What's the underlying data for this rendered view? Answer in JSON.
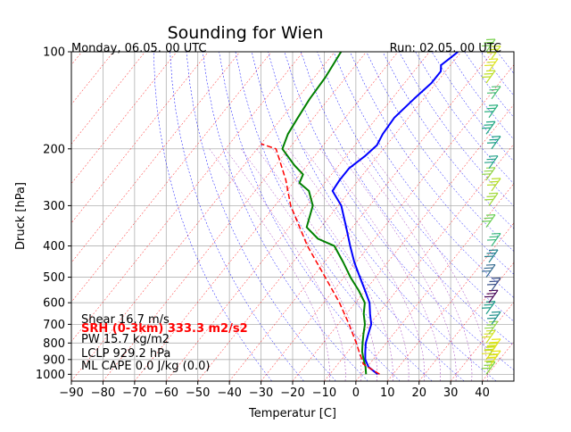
{
  "chart_data": {
    "type": "line",
    "title": "Sounding for Wien",
    "subtitle_left": "Monday, 06.05. 00 UTC",
    "subtitle_right": "Run: 02.05. 00 UTC",
    "xlabel": "Temperatur [C]",
    "ylabel": "Druck [hPa]",
    "xlim": [
      -90,
      50
    ],
    "ylim": [
      1050,
      100
    ],
    "y_scale": "log",
    "grid": true,
    "x_ticks": [
      -90,
      -80,
      -70,
      -60,
      -50,
      -40,
      -30,
      -20,
      -10,
      0,
      10,
      20,
      30,
      40
    ],
    "y_ticks": [
      100,
      200,
      300,
      400,
      500,
      600,
      700,
      800,
      900,
      1000
    ],
    "series": [
      {
        "color": "#0000ff",
        "values": [
          {
            "p": 1000,
            "t": 5.2
          },
          {
            "p": 950,
            "t": 0.5
          },
          {
            "p": 900,
            "t": -2.5
          },
          {
            "p": 850,
            "t": -4.5
          },
          {
            "p": 800,
            "t": -6.5
          },
          {
            "p": 750,
            "t": -8.0
          },
          {
            "p": 700,
            "t": -9.5
          },
          {
            "p": 650,
            "t": -12.5
          },
          {
            "p": 600,
            "t": -15.5
          },
          {
            "p": 550,
            "t": -20.0
          },
          {
            "p": 500,
            "t": -25.0
          },
          {
            "p": 450,
            "t": -30.5
          },
          {
            "p": 400,
            "t": -36.0
          },
          {
            "p": 350,
            "t": -42.0
          },
          {
            "p": 300,
            "t": -49.0
          },
          {
            "p": 270,
            "t": -55.5
          },
          {
            "p": 250,
            "t": -56.0
          },
          {
            "p": 230,
            "t": -56.0
          },
          {
            "p": 210,
            "t": -54.0
          },
          {
            "p": 195,
            "t": -53.0
          },
          {
            "p": 180,
            "t": -54.0
          },
          {
            "p": 160,
            "t": -54.5
          },
          {
            "p": 140,
            "t": -53.0
          },
          {
            "p": 125,
            "t": -51.5
          },
          {
            "p": 115,
            "t": -51.5
          },
          {
            "p": 110,
            "t": -53.0
          },
          {
            "p": 105,
            "t": -52.0
          },
          {
            "p": 100,
            "t": -51.0
          }
        ]
      },
      {
        "color": "#008000",
        "values": [
          {
            "p": 1000,
            "t": 1.5
          },
          {
            "p": 950,
            "t": -0.5
          },
          {
            "p": 900,
            "t": -3.0
          },
          {
            "p": 850,
            "t": -5.5
          },
          {
            "p": 800,
            "t": -7.5
          },
          {
            "p": 750,
            "t": -9.5
          },
          {
            "p": 700,
            "t": -11.5
          },
          {
            "p": 650,
            "t": -14.5
          },
          {
            "p": 600,
            "t": -17.0
          },
          {
            "p": 550,
            "t": -22.0
          },
          {
            "p": 500,
            "t": -28.0
          },
          {
            "p": 450,
            "t": -34.0
          },
          {
            "p": 400,
            "t": -41.0
          },
          {
            "p": 380,
            "t": -48.0
          },
          {
            "p": 350,
            "t": -54.5
          },
          {
            "p": 300,
            "t": -58.0
          },
          {
            "p": 270,
            "t": -63.0
          },
          {
            "p": 255,
            "t": -68.0
          },
          {
            "p": 240,
            "t": -69.0
          },
          {
            "p": 225,
            "t": -74.0
          },
          {
            "p": 200,
            "t": -82.0
          },
          {
            "p": 180,
            "t": -84.0
          },
          {
            "p": 160,
            "t": -85.0
          },
          {
            "p": 140,
            "t": -86.0
          },
          {
            "p": 120,
            "t": -86.5
          },
          {
            "p": 100,
            "t": -88.0
          }
        ]
      },
      {
        "color": "#ff0000",
        "values": [
          {
            "p": 1000,
            "t": 5.8
          },
          {
            "p": 929.2,
            "t": -2.0
          },
          {
            "p": 900,
            "t": -3.5
          },
          {
            "p": 850,
            "t": -6.5
          },
          {
            "p": 800,
            "t": -9.5
          },
          {
            "p": 700,
            "t": -16.5
          },
          {
            "p": 600,
            "t": -25.0
          },
          {
            "p": 500,
            "t": -36.0
          },
          {
            "p": 400,
            "t": -49.5
          },
          {
            "p": 300,
            "t": -65.0
          },
          {
            "p": 250,
            "t": -73.0
          },
          {
            "p": 200,
            "t": -84.0
          },
          {
            "p": 193,
            "t": -90.0
          }
        ]
      }
    ],
    "barbs": [
      {
        "p": 1000,
        "color": "#7fd23a"
      },
      {
        "p": 950,
        "color": "#c9e021"
      },
      {
        "p": 925,
        "color": "#e6e419"
      },
      {
        "p": 900,
        "color": "#dede1d"
      },
      {
        "p": 875,
        "color": "#b5de2b"
      },
      {
        "p": 850,
        "color": "#e6e419"
      },
      {
        "p": 800,
        "color": "#d0e11c"
      },
      {
        "p": 750,
        "color": "#8ed645"
      },
      {
        "p": 700,
        "color": "#21918c"
      },
      {
        "p": 650,
        "color": "#1f9e89"
      },
      {
        "p": 600,
        "color": "#440154"
      },
      {
        "p": 550,
        "color": "#3b528b"
      },
      {
        "p": 500,
        "color": "#31688e"
      },
      {
        "p": 450,
        "color": "#26828e"
      },
      {
        "p": 400,
        "color": "#35b779"
      },
      {
        "p": 350,
        "color": "#6ece58"
      },
      {
        "p": 300,
        "color": "#a0da39"
      },
      {
        "p": 270,
        "color": "#b5de2b"
      },
      {
        "p": 250,
        "color": "#8ed645"
      },
      {
        "p": 230,
        "color": "#1fa187"
      },
      {
        "p": 200,
        "color": "#1fa187"
      },
      {
        "p": 180,
        "color": "#22a884"
      },
      {
        "p": 160,
        "color": "#2ab07f"
      },
      {
        "p": 140,
        "color": "#44bf70"
      },
      {
        "p": 125,
        "color": "#bddf26"
      },
      {
        "p": 115,
        "color": "#dde318"
      },
      {
        "p": 105,
        "color": "#cae11f"
      },
      {
        "p": 100,
        "color": "#7ad151"
      }
    ],
    "annotations": [
      {
        "text": "Shear 16.7 m/s",
        "color": "#000000",
        "bold": false
      },
      {
        "text": "SRH (0-3km) 333.3 m2/s2",
        "color": "#ff0000",
        "bold": true
      },
      {
        "text": "PW 15.7 kg/m2",
        "color": "#000000",
        "bold": false
      },
      {
        "text": "LCLP 929.2 hPa",
        "color": "#000000",
        "bold": false
      },
      {
        "text": "ML CAPE 0.0 J/kg (0.0)",
        "color": "#000000",
        "bold": false
      }
    ]
  }
}
